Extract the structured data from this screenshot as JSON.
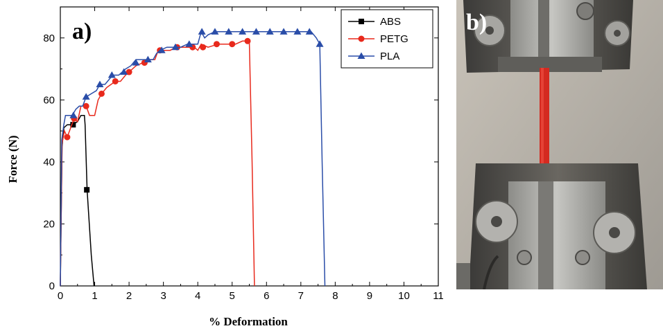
{
  "panel_a_label": "a)",
  "panel_b_label": "b)",
  "chart_data": {
    "type": "line",
    "title": "",
    "xlabel": "% Deformation",
    "ylabel": "Force (N)",
    "xlim": [
      0,
      11
    ],
    "ylim": [
      0,
      90
    ],
    "xticks": [
      0,
      1,
      2,
      3,
      4,
      5,
      6,
      7,
      8,
      9,
      10,
      11
    ],
    "yticks": [
      0,
      20,
      40,
      60,
      80
    ],
    "grid": false,
    "legend_position": "top-right",
    "series": [
      {
        "name": "ABS",
        "color": "#000000",
        "marker": "square",
        "points": [
          [
            0,
            0
          ],
          [
            0.05,
            45
          ],
          [
            0.1,
            51
          ],
          [
            0.2,
            52
          ],
          [
            0.35,
            52
          ],
          [
            0.5,
            53
          ],
          [
            0.6,
            55
          ],
          [
            0.7,
            55
          ],
          [
            0.72,
            52
          ],
          [
            0.78,
            31
          ],
          [
            0.9,
            10
          ],
          [
            0.98,
            0
          ]
        ],
        "markers": [
          [
            0.37,
            52
          ],
          [
            0.77,
            31
          ]
        ]
      },
      {
        "name": "PETG",
        "color": "#e8291c",
        "marker": "circle",
        "points": [
          [
            0,
            0
          ],
          [
            0.05,
            46
          ],
          [
            0.12,
            50
          ],
          [
            0.2,
            48
          ],
          [
            0.3,
            51
          ],
          [
            0.4,
            54
          ],
          [
            0.5,
            53
          ],
          [
            0.6,
            58
          ],
          [
            0.75,
            58
          ],
          [
            0.85,
            55
          ],
          [
            1.0,
            55
          ],
          [
            1.1,
            60
          ],
          [
            1.2,
            62
          ],
          [
            1.35,
            64
          ],
          [
            1.6,
            66
          ],
          [
            1.75,
            66
          ],
          [
            1.9,
            68
          ],
          [
            2.0,
            69
          ],
          [
            2.2,
            71
          ],
          [
            2.4,
            72
          ],
          [
            2.6,
            73
          ],
          [
            2.75,
            73
          ],
          [
            2.85,
            76
          ],
          [
            3.0,
            76
          ],
          [
            3.2,
            76
          ],
          [
            3.35,
            77
          ],
          [
            3.6,
            77
          ],
          [
            3.9,
            77
          ],
          [
            4.0,
            76
          ],
          [
            4.1,
            78
          ],
          [
            4.3,
            77
          ],
          [
            4.6,
            78
          ],
          [
            4.9,
            78
          ],
          [
            5.1,
            78
          ],
          [
            5.3,
            79
          ],
          [
            5.45,
            79
          ],
          [
            5.5,
            79
          ],
          [
            5.58,
            40
          ],
          [
            5.65,
            0
          ]
        ],
        "markers": [
          [
            0.2,
            48
          ],
          [
            0.4,
            54
          ],
          [
            0.75,
            58
          ],
          [
            1.2,
            62
          ],
          [
            1.6,
            66
          ],
          [
            2.0,
            69
          ],
          [
            2.45,
            72
          ],
          [
            2.9,
            76
          ],
          [
            3.4,
            77
          ],
          [
            3.85,
            77
          ],
          [
            4.15,
            77
          ],
          [
            4.55,
            78
          ],
          [
            5.0,
            78
          ],
          [
            5.45,
            79
          ]
        ]
      },
      {
        "name": "PLA",
        "color": "#2a4da8",
        "marker": "triangle",
        "points": [
          [
            0,
            0
          ],
          [
            0.04,
            47
          ],
          [
            0.1,
            52
          ],
          [
            0.15,
            55
          ],
          [
            0.35,
            55
          ],
          [
            0.45,
            57
          ],
          [
            0.55,
            58
          ],
          [
            0.65,
            58
          ],
          [
            0.75,
            61
          ],
          [
            0.9,
            62
          ],
          [
            1.05,
            63
          ],
          [
            1.15,
            65
          ],
          [
            1.3,
            65
          ],
          [
            1.45,
            67
          ],
          [
            1.55,
            68
          ],
          [
            1.7,
            68
          ],
          [
            1.8,
            69
          ],
          [
            1.9,
            70
          ],
          [
            2.05,
            71
          ],
          [
            2.2,
            73
          ],
          [
            2.35,
            73
          ],
          [
            2.5,
            73
          ],
          [
            2.7,
            73
          ],
          [
            2.8,
            75
          ],
          [
            2.9,
            76
          ],
          [
            3.1,
            77
          ],
          [
            3.3,
            77
          ],
          [
            3.5,
            77
          ],
          [
            3.7,
            78
          ],
          [
            3.85,
            78
          ],
          [
            4.0,
            78
          ],
          [
            4.1,
            82
          ],
          [
            4.2,
            80
          ],
          [
            4.3,
            81
          ],
          [
            4.5,
            82
          ],
          [
            5.0,
            82
          ],
          [
            5.5,
            82
          ],
          [
            6.0,
            82
          ],
          [
            6.5,
            82
          ],
          [
            7.0,
            82
          ],
          [
            7.3,
            82
          ],
          [
            7.45,
            80
          ],
          [
            7.55,
            78
          ],
          [
            7.62,
            40
          ],
          [
            7.7,
            0
          ]
        ],
        "markers": [
          [
            0.38,
            55
          ],
          [
            0.75,
            61
          ],
          [
            1.15,
            65
          ],
          [
            1.5,
            68
          ],
          [
            1.85,
            69
          ],
          [
            2.2,
            72
          ],
          [
            2.55,
            73
          ],
          [
            2.95,
            76
          ],
          [
            3.35,
            77
          ],
          [
            3.75,
            78
          ],
          [
            4.12,
            82
          ],
          [
            4.5,
            82
          ],
          [
            4.9,
            82
          ],
          [
            5.3,
            82
          ],
          [
            5.7,
            82
          ],
          [
            6.1,
            82
          ],
          [
            6.5,
            82
          ],
          [
            6.9,
            82
          ],
          [
            7.25,
            82
          ],
          [
            7.55,
            78
          ]
        ]
      }
    ]
  },
  "photo": {
    "description_icon": "tensile-test-grips-icon",
    "specimen_color": "#d42a20",
    "steel_color": "#5d5a55",
    "background_color": "#b7b2aa"
  }
}
